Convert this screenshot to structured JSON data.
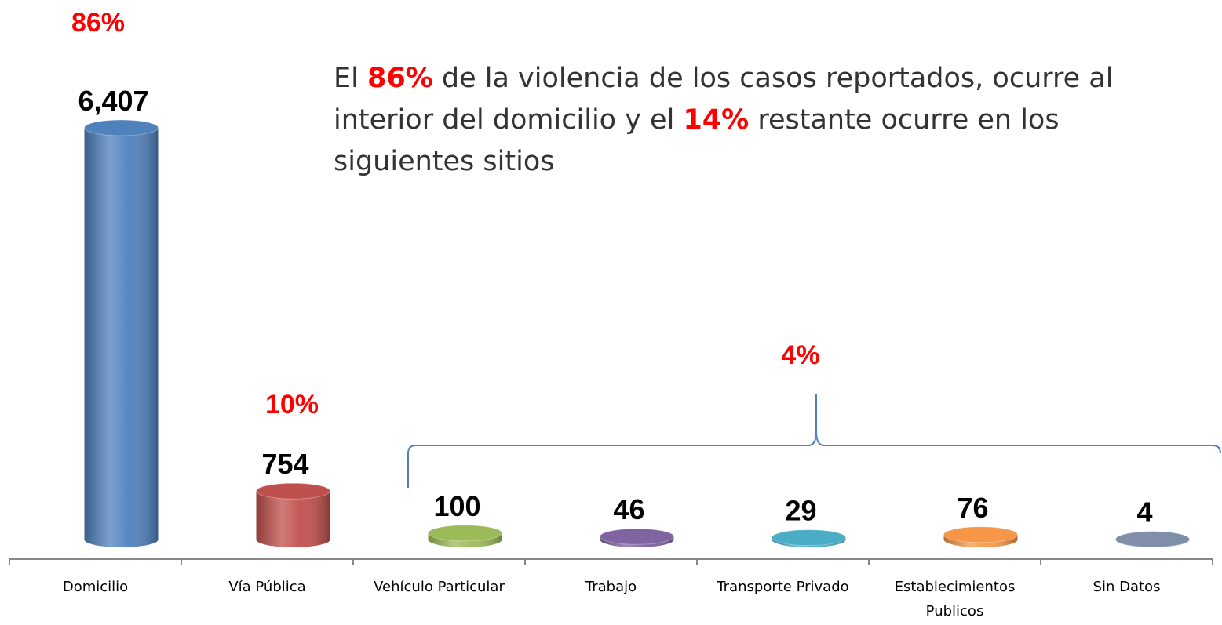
{
  "chart_data": {
    "type": "bar",
    "categories": [
      "Domicilio",
      "Vía Pública",
      "Vehículo Particular",
      "Trabajo",
      "Transporte Privado",
      "Establecimientos Publicos",
      "Sin Datos"
    ],
    "values": [
      6407,
      754,
      100,
      46,
      29,
      76,
      4
    ],
    "value_labels": [
      "6,407",
      "754",
      "100",
      "46",
      "29",
      "76",
      "4"
    ],
    "colors": [
      "#4f81bd",
      "#c0504d",
      "#9bbb59",
      "#8064a2",
      "#4bacc6",
      "#f79646",
      "#7f8fa9"
    ],
    "annotations": [
      "86%",
      "10%",
      "4%"
    ],
    "annotation_color": "#ff0000",
    "note": [
      {
        "text": "El "
      },
      {
        "text": "86%",
        "color": "#ff0000"
      },
      {
        "text": " de la violencia de los casos reportados, ocurre al interior del domicilio y el "
      },
      {
        "text": "14%",
        "color": "#ff0000"
      },
      {
        "text": " restante ocurre en los siguientes sitios"
      }
    ]
  }
}
